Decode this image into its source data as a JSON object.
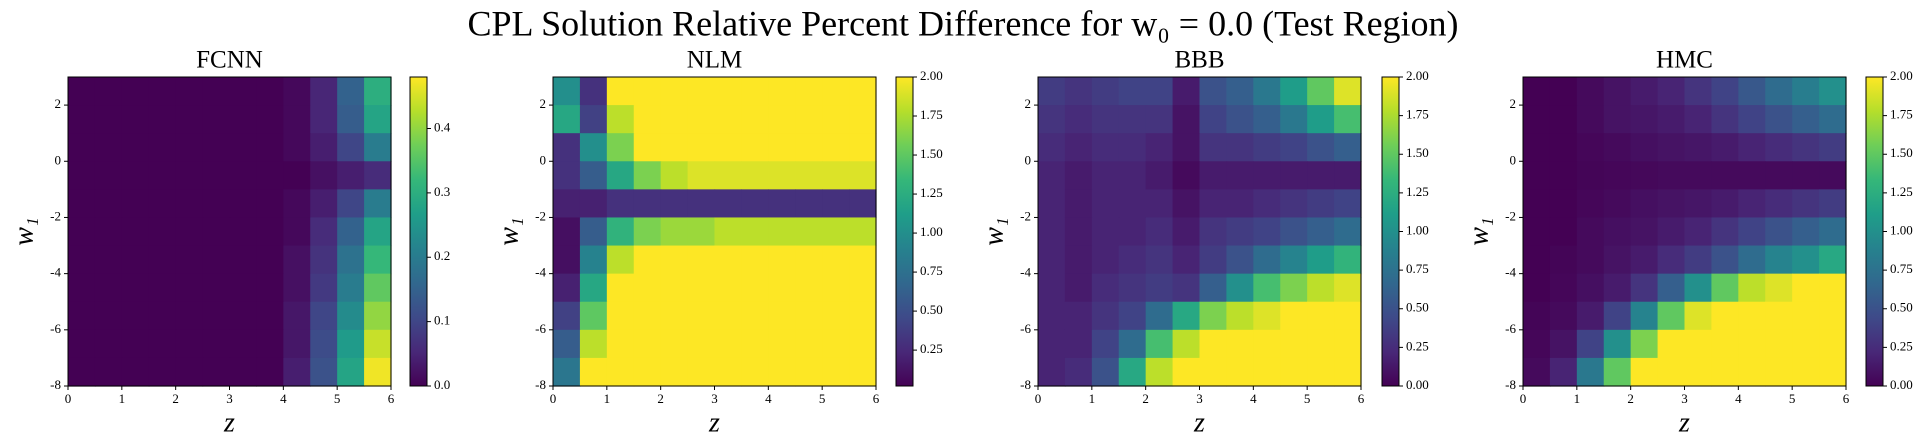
{
  "title": "CPL Solution Relative Percent Difference for w₀ = 0.0 (Test Region)",
  "chart_data": [
    {
      "type": "heatmap",
      "title": "FCNN",
      "xlabel": "z",
      "ylabel": "w₁",
      "colormap": "viridis",
      "xlim": [
        0,
        6
      ],
      "ylim": [
        -8,
        3
      ],
      "xticks": [
        0,
        1,
        2,
        3,
        4,
        5,
        6
      ],
      "yticks": [
        -8,
        -6,
        -4,
        -2,
        0,
        2
      ],
      "clim": [
        0,
        0.48
      ],
      "cticks": [
        {
          "value": 0,
          "label": "0.0"
        },
        0.1,
        0.2,
        0.3,
        0.4
      ],
      "values": [
        [
          0,
          0,
          0,
          0,
          0,
          0,
          0,
          0,
          0.01,
          0.05,
          0.15,
          0.3
        ],
        [
          0,
          0,
          0,
          0,
          0,
          0,
          0,
          0,
          0.01,
          0.05,
          0.14,
          0.28
        ],
        [
          0,
          0,
          0,
          0,
          0,
          0,
          0,
          0,
          0.01,
          0.04,
          0.1,
          0.2
        ],
        [
          0,
          0,
          0,
          0,
          0,
          0,
          0,
          0,
          0,
          0.02,
          0.04,
          0.06
        ],
        [
          0,
          0,
          0,
          0,
          0,
          0,
          0,
          0,
          0.01,
          0.04,
          0.1,
          0.2
        ],
        [
          0,
          0,
          0,
          0,
          0,
          0,
          0,
          0,
          0.01,
          0.06,
          0.15,
          0.28
        ],
        [
          0,
          0,
          0,
          0,
          0,
          0,
          0,
          0,
          0.02,
          0.07,
          0.18,
          0.32
        ],
        [
          0,
          0,
          0,
          0,
          0,
          0,
          0,
          0,
          0.02,
          0.08,
          0.2,
          0.36
        ],
        [
          0,
          0,
          0,
          0,
          0,
          0,
          0,
          0,
          0.03,
          0.1,
          0.23,
          0.4
        ],
        [
          0,
          0,
          0,
          0,
          0,
          0,
          0,
          0,
          0.03,
          0.11,
          0.26,
          0.44
        ],
        [
          0,
          0,
          0,
          0,
          0,
          0,
          0,
          0,
          0.04,
          0.12,
          0.28,
          0.47
        ]
      ]
    },
    {
      "type": "heatmap",
      "title": "NLM",
      "xlabel": "z",
      "ylabel": "w₁",
      "colormap": "viridis",
      "xlim": [
        0,
        6
      ],
      "ylim": [
        -8,
        3
      ],
      "xticks": [
        0,
        1,
        2,
        3,
        4,
        5,
        6
      ],
      "yticks": [
        -8,
        -6,
        -4,
        -2,
        0,
        2
      ],
      "clim": [
        0.02,
        2
      ],
      "cticks": [
        0.25,
        {
          "value": 0.5,
          "label": "0.50"
        },
        0.75,
        {
          "value": 1,
          "label": "1.00"
        },
        1.25,
        {
          "value": 1.5,
          "label": "1.50"
        },
        1.75,
        {
          "value": 2,
          "label": "2.00"
        }
      ],
      "values": [
        [
          1.0,
          0.3,
          2,
          2,
          2,
          2,
          2,
          2,
          2,
          2,
          2,
          2
        ],
        [
          1.2,
          0.4,
          1.8,
          2,
          2,
          2,
          2,
          2,
          2,
          2,
          2,
          2
        ],
        [
          0.3,
          1.0,
          1.6,
          2,
          2,
          2,
          2,
          2,
          2,
          2,
          2,
          2
        ],
        [
          0.3,
          0.6,
          1.2,
          1.6,
          1.8,
          1.9,
          1.9,
          1.9,
          1.9,
          1.9,
          1.9,
          1.9
        ],
        [
          0.2,
          0.2,
          0.3,
          0.3,
          0.3,
          0.3,
          0.3,
          0.3,
          0.3,
          0.3,
          0.3,
          0.3
        ],
        [
          0.1,
          0.6,
          1.3,
          1.6,
          1.7,
          1.7,
          1.8,
          1.8,
          1.8,
          1.8,
          1.8,
          1.8
        ],
        [
          0.1,
          0.9,
          1.8,
          2,
          2,
          2,
          2,
          2,
          2,
          2,
          2,
          2
        ],
        [
          0.2,
          1.2,
          2,
          2,
          2,
          2,
          2,
          2,
          2,
          2,
          2,
          2
        ],
        [
          0.4,
          1.5,
          2,
          2,
          2,
          2,
          2,
          2,
          2,
          2,
          2,
          2
        ],
        [
          0.6,
          1.8,
          2,
          2,
          2,
          2,
          2,
          2,
          2,
          2,
          2,
          2
        ],
        [
          0.8,
          2,
          2,
          2,
          2,
          2,
          2,
          2,
          2,
          2,
          2,
          2
        ]
      ]
    },
    {
      "type": "heatmap",
      "title": "BBB",
      "xlabel": "z",
      "ylabel": "w₁",
      "colormap": "viridis",
      "xlim": [
        0,
        6
      ],
      "ylim": [
        -8,
        3
      ],
      "xticks": [
        0,
        1,
        2,
        3,
        4,
        5,
        6
      ],
      "yticks": [
        -8,
        -6,
        -4,
        -2,
        0,
        2
      ],
      "clim": [
        0,
        2
      ],
      "cticks": [
        {
          "value": 0,
          "label": "0.00"
        },
        0.25,
        {
          "value": 0.5,
          "label": "0.50"
        },
        0.75,
        {
          "value": 1,
          "label": "1.00"
        },
        1.25,
        {
          "value": 1.5,
          "label": "1.50"
        },
        1.75,
        {
          "value": 2,
          "label": "2.00"
        }
      ],
      "values": [
        [
          0.35,
          0.3,
          0.35,
          0.4,
          0.4,
          0.15,
          0.5,
          0.6,
          0.8,
          1.1,
          1.5,
          1.9
        ],
        [
          0.3,
          0.25,
          0.3,
          0.3,
          0.3,
          0.1,
          0.4,
          0.5,
          0.6,
          0.8,
          1.1,
          1.4
        ],
        [
          0.25,
          0.2,
          0.25,
          0.25,
          0.2,
          0.1,
          0.3,
          0.3,
          0.35,
          0.4,
          0.5,
          0.6
        ],
        [
          0.2,
          0.15,
          0.2,
          0.2,
          0.15,
          0.05,
          0.15,
          0.15,
          0.15,
          0.15,
          0.15,
          0.15
        ],
        [
          0.2,
          0.15,
          0.2,
          0.2,
          0.2,
          0.1,
          0.2,
          0.2,
          0.25,
          0.3,
          0.35,
          0.4
        ],
        [
          0.2,
          0.15,
          0.2,
          0.2,
          0.25,
          0.15,
          0.3,
          0.35,
          0.4,
          0.5,
          0.6,
          0.7
        ],
        [
          0.2,
          0.15,
          0.2,
          0.25,
          0.3,
          0.2,
          0.35,
          0.5,
          0.7,
          0.9,
          1.1,
          1.3
        ],
        [
          0.2,
          0.15,
          0.25,
          0.3,
          0.35,
          0.3,
          0.6,
          1.0,
          1.4,
          1.6,
          1.8,
          1.9
        ],
        [
          0.2,
          0.2,
          0.3,
          0.4,
          0.7,
          1.2,
          1.6,
          1.8,
          1.9,
          2,
          2,
          2
        ],
        [
          0.2,
          0.2,
          0.4,
          0.7,
          1.4,
          1.8,
          2,
          2,
          2,
          2,
          2,
          2
        ],
        [
          0.2,
          0.25,
          0.5,
          1.2,
          1.8,
          2,
          2,
          2,
          2,
          2,
          2,
          2
        ]
      ]
    },
    {
      "type": "heatmap",
      "title": "HMC",
      "xlabel": "z",
      "ylabel": "w₁",
      "colormap": "viridis",
      "xlim": [
        0,
        6
      ],
      "ylim": [
        -8,
        3
      ],
      "xticks": [
        0,
        1,
        2,
        3,
        4,
        5,
        6
      ],
      "yticks": [
        -8,
        -6,
        -4,
        -2,
        0,
        2
      ],
      "clim": [
        0,
        2
      ],
      "cticks": [
        {
          "value": 0,
          "label": "0.00"
        },
        0.25,
        {
          "value": 0.5,
          "label": "0.50"
        },
        0.75,
        {
          "value": 1,
          "label": "1.00"
        },
        1.25,
        {
          "value": 1.5,
          "label": "1.50"
        },
        1.75,
        {
          "value": 2,
          "label": "2.00"
        }
      ],
      "values": [
        [
          0,
          0,
          0.05,
          0.1,
          0.15,
          0.2,
          0.3,
          0.4,
          0.55,
          0.7,
          0.85,
          1.0
        ],
        [
          0,
          0,
          0.05,
          0.1,
          0.12,
          0.15,
          0.2,
          0.3,
          0.4,
          0.5,
          0.6,
          0.7
        ],
        [
          0,
          0,
          0.03,
          0.05,
          0.08,
          0.1,
          0.12,
          0.15,
          0.2,
          0.25,
          0.3,
          0.35
        ],
        [
          0,
          0,
          0.02,
          0.03,
          0.04,
          0.05,
          0.05,
          0.05,
          0.05,
          0.05,
          0.05,
          0.05
        ],
        [
          0,
          0,
          0.03,
          0.05,
          0.08,
          0.1,
          0.12,
          0.15,
          0.2,
          0.25,
          0.3,
          0.35
        ],
        [
          0,
          0,
          0.05,
          0.08,
          0.1,
          0.15,
          0.2,
          0.3,
          0.4,
          0.5,
          0.6,
          0.7
        ],
        [
          0,
          0.02,
          0.05,
          0.1,
          0.15,
          0.25,
          0.35,
          0.5,
          0.7,
          0.9,
          1.0,
          1.2
        ],
        [
          0,
          0.03,
          0.08,
          0.15,
          0.3,
          0.6,
          1.0,
          1.5,
          1.8,
          1.9,
          2,
          2
        ],
        [
          0.02,
          0.05,
          0.15,
          0.4,
          0.9,
          1.5,
          1.9,
          2,
          2,
          2,
          2,
          2
        ],
        [
          0.03,
          0.1,
          0.4,
          1.0,
          1.6,
          2,
          2,
          2,
          2,
          2,
          2,
          2
        ],
        [
          0.05,
          0.2,
          0.8,
          1.5,
          2,
          2,
          2,
          2,
          2,
          2,
          2,
          2
        ]
      ]
    }
  ]
}
